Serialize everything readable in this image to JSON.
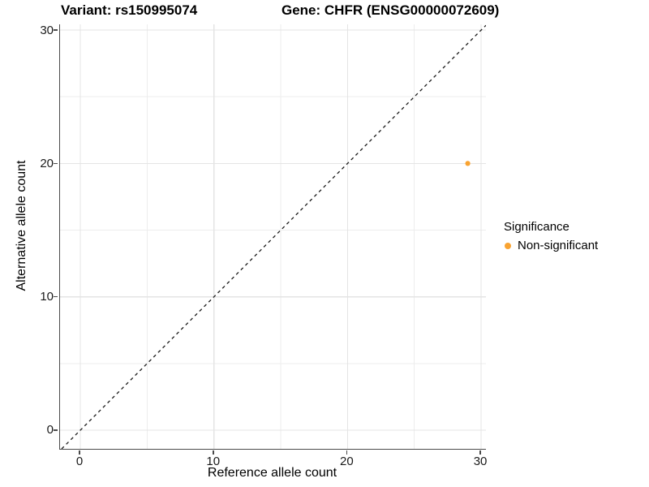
{
  "titles": {
    "variant": "Variant: rs150995074",
    "gene": "Gene: CHFR (ENSG00000072609)"
  },
  "axes": {
    "x_label": "Reference allele count",
    "y_label": "Alternative allele count",
    "x_tick_labels": [
      "0",
      "10",
      "20",
      "30"
    ],
    "y_tick_labels": [
      "0",
      "10",
      "20",
      "30"
    ]
  },
  "legend": {
    "title": "Significance",
    "items": [
      {
        "label": "Non-significant",
        "color": "#F9A331"
      }
    ]
  },
  "colors": {
    "point": "#F9A331",
    "grid_major": "#E4E4E4",
    "grid_minor": "#EDEDED",
    "axis_line": "#4a4a4a",
    "diagonal": "#1a1a1a"
  },
  "chart_data": {
    "type": "scatter",
    "title": "Variant: rs150995074 — Gene: CHFR (ENSG00000072609)",
    "xlabel": "Reference allele count",
    "ylabel": "Alternative allele count",
    "series": [
      {
        "name": "Non-significant",
        "color": "#F9A331",
        "points": [
          {
            "x": 29,
            "y": 20
          }
        ]
      }
    ],
    "x_breaks": [
      0,
      10,
      20,
      30
    ],
    "y_breaks": [
      0,
      10,
      20,
      30
    ],
    "x_minor_breaks": [
      5,
      15,
      25
    ],
    "y_minor_breaks": [
      5,
      15,
      25
    ],
    "xlim": [
      -1.52,
      30.36
    ],
    "ylim": [
      -1.4,
      30.43
    ],
    "reference_line": {
      "type": "identity y=x",
      "style": "dashed",
      "color": "#1a1a1a"
    },
    "grid": true,
    "legend_title": "Significance",
    "legend_position": "right"
  }
}
